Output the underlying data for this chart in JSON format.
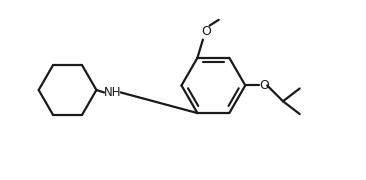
{
  "bg_color": "#ffffff",
  "line_color": "#1a1a1a",
  "line_width": 1.6,
  "font_size": 8.5,
  "fig_width": 3.66,
  "fig_height": 1.8,
  "dpi": 100,
  "xlim": [
    -0.5,
    11.5
  ],
  "ylim": [
    0.2,
    5.2
  ]
}
